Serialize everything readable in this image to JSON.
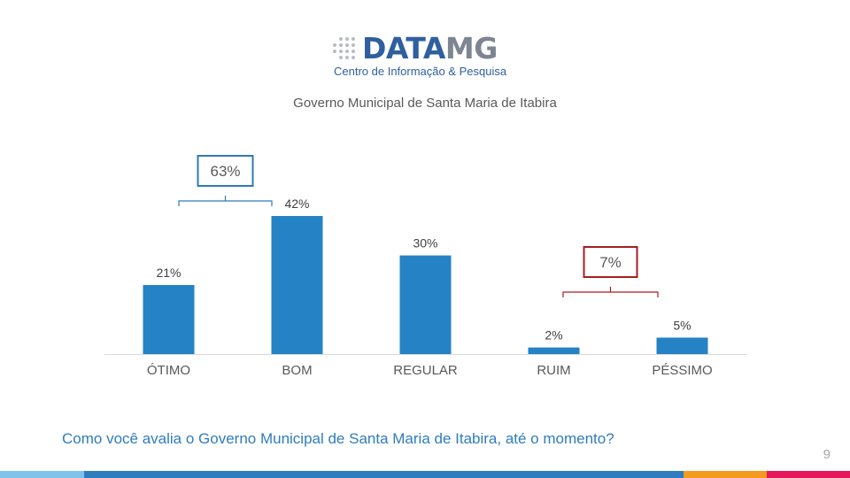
{
  "logo": {
    "word_part1": "DATA",
    "word_part2": "MG",
    "tagline": "Centro de Informação & Pesquisa"
  },
  "subtitle": "Governo Municipal de Santa Maria de Itabira",
  "question": "Como você avalia o Governo Municipal de Santa Maria de Itabira, até o momento?",
  "page_number": "9",
  "colors": {
    "bar": "#2482c5",
    "positive_bracket": "#2f7ab8",
    "negative_bracket": "#a61e22",
    "question_text": "#2e7dbf"
  },
  "chart_data": {
    "type": "bar",
    "title": "",
    "xlabel": "",
    "ylabel": "",
    "categories": [
      "ÓTIMO",
      "BOM",
      "REGULAR",
      "RUIM",
      "PÉSSIMO"
    ],
    "values": [
      21,
      42,
      30,
      2,
      5
    ],
    "value_labels": [
      "21%",
      "42%",
      "30%",
      "2%",
      "5%"
    ],
    "ylim": [
      0,
      45
    ],
    "grid": false,
    "legend": "none",
    "annotations": [
      {
        "label": "63%",
        "spans": [
          "ÓTIMO",
          "BOM"
        ],
        "kind": "positive"
      },
      {
        "label": "7%",
        "spans": [
          "RUIM",
          "PÉSSIMO"
        ],
        "kind": "negative"
      }
    ]
  }
}
